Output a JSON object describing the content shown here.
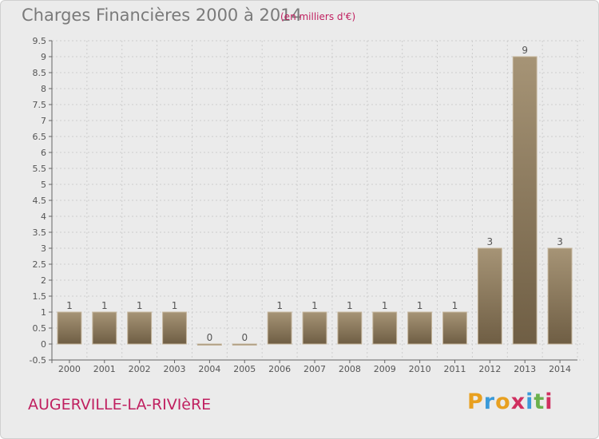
{
  "header": {
    "title": "Charges Financières 2000 à 2014",
    "unit": "(en milliers d'€)"
  },
  "footer": {
    "location": "AUGERVILLE-LA-RIVIèRE",
    "brand_letters": [
      "P",
      "r",
      "o",
      "x",
      "i",
      "t",
      "i"
    ],
    "brand_colors": [
      "#e8a020",
      "#3a9ad9",
      "#e8a020",
      "#d03060",
      "#3a9ad9",
      "#6ab04c",
      "#d03060"
    ]
  },
  "colors": {
    "bar": "#8c7a5e",
    "bar_edge": "#c4b49a",
    "grid": "#cccccc",
    "accent": "#c02060"
  },
  "chart_data": {
    "type": "bar",
    "title": "Charges Financières 2000 à 2014",
    "subtitle": "(en milliers d'€)",
    "categories": [
      "2000",
      "2001",
      "2002",
      "2003",
      "2004",
      "2005",
      "2006",
      "2007",
      "2008",
      "2009",
      "2010",
      "2011",
      "2012",
      "2013",
      "2014"
    ],
    "values": [
      1,
      1,
      1,
      1,
      0,
      0,
      1,
      1,
      1,
      1,
      1,
      1,
      3,
      9,
      3
    ],
    "data_labels": [
      "1",
      "1",
      "1",
      "1",
      "0",
      "0",
      "1",
      "1",
      "1",
      "1",
      "1",
      "1",
      "3",
      "9",
      "3"
    ],
    "ylim": [
      -0.5,
      9.5
    ],
    "yticks": [
      "9.5",
      "9",
      "8.5",
      "8",
      "7.5",
      "7",
      "6.5",
      "6",
      "5.5",
      "5",
      "4.5",
      "4",
      "3.5",
      "3",
      "2.5",
      "2",
      "1.5",
      "1",
      "0.5",
      "0",
      "-0.5"
    ],
    "ytick_values": [
      9.5,
      9,
      8.5,
      8,
      7.5,
      7,
      6.5,
      6,
      5.5,
      5,
      4.5,
      4,
      3.5,
      3,
      2.5,
      2,
      1.5,
      1,
      0.5,
      0,
      -0.5
    ],
    "grid": true,
    "xlabel": "",
    "ylabel": ""
  }
}
